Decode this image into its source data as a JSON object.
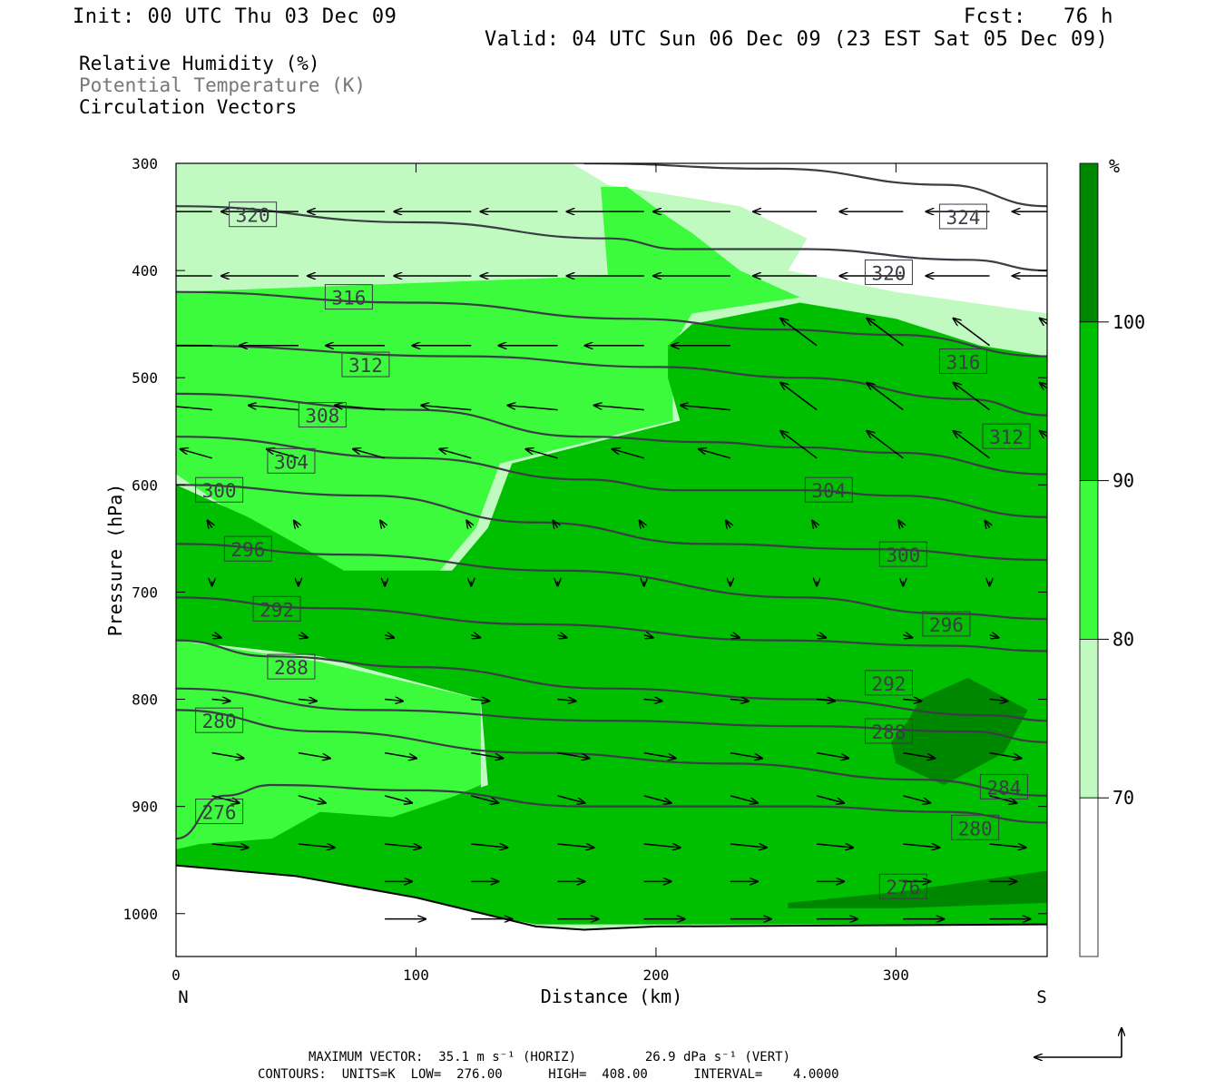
{
  "header": {
    "init": "Init: 00 UTC Thu 03 Dec 09",
    "fcst": "Fcst:   76 h",
    "valid": "Valid: 04 UTC Sun 06 Dec 09 (23 EST Sat 05 Dec 09)"
  },
  "legend_lines": [
    {
      "text": "Relative Humidity (%)",
      "color": "#000000"
    },
    {
      "text": "Potential Temperature (K)",
      "color": "#777777"
    },
    {
      "text": "Circulation Vectors",
      "color": "#000000"
    }
  ],
  "chart_data": {
    "type": "heatmap",
    "xlabel": "Distance (km)",
    "ylabel": "Pressure (hPa)",
    "x_range": [
      0,
      363
    ],
    "y_range": [
      300,
      1040
    ],
    "x_ticks": [
      0,
      100,
      200,
      300
    ],
    "y_ticks": [
      300,
      400,
      500,
      600,
      700,
      800,
      900,
      1000
    ],
    "x_end_labels": {
      "left": "N",
      "right": "S"
    },
    "colorbar": {
      "unit_label": "%",
      "levels": [
        70,
        80,
        90,
        100
      ],
      "colors": [
        "#ffffff",
        "#c0fac0",
        "#3cfa3c",
        "#00be00",
        "#008700"
      ]
    },
    "rh_fill": {
      "low_70_80": [
        [
          0,
          950
        ],
        [
          10,
          950
        ],
        [
          30,
          960
        ],
        [
          55,
          970
        ],
        [
          40,
          930
        ],
        [
          10,
          910
        ],
        [
          0,
          910
        ]
      ],
      "mid_80_90": [
        [
          0,
          420
        ],
        [
          100,
          410
        ],
        [
          180,
          405
        ],
        [
          220,
          400
        ],
        [
          250,
          400
        ],
        [
          260,
          430
        ],
        [
          220,
          440
        ],
        [
          210,
          465
        ],
        [
          207,
          540
        ],
        [
          135,
          580
        ],
        [
          125,
          640
        ],
        [
          110,
          680
        ],
        [
          80,
          690
        ],
        [
          40,
          650
        ],
        [
          10,
          600
        ],
        [
          0,
          590
        ],
        [
          0,
          740
        ],
        [
          60,
          760
        ],
        [
          130,
          810
        ],
        [
          127,
          880
        ],
        [
          127,
          910
        ],
        [
          100,
          920
        ],
        [
          60,
          930
        ],
        [
          30,
          880
        ],
        [
          0,
          870
        ]
      ],
      "high_90_100": [
        [
          205,
          470
        ],
        [
          215,
          450
        ],
        [
          260,
          430
        ],
        [
          300,
          445
        ],
        [
          335,
          470
        ],
        [
          363,
          480
        ],
        [
          363,
          1010
        ],
        [
          300,
          1010
        ],
        [
          200,
          1010
        ],
        [
          150,
          1010
        ],
        [
          100,
          990
        ],
        [
          55,
          970
        ],
        [
          0,
          955
        ],
        [
          0,
          940
        ],
        [
          10,
          935
        ],
        [
          40,
          930
        ],
        [
          60,
          905
        ],
        [
          90,
          910
        ],
        [
          130,
          880
        ],
        [
          127,
          800
        ],
        [
          60,
          760
        ],
        [
          0,
          745
        ],
        [
          0,
          600
        ],
        [
          30,
          630
        ],
        [
          70,
          680
        ],
        [
          115,
          680
        ],
        [
          130,
          640
        ],
        [
          140,
          580
        ],
        [
          210,
          540
        ],
        [
          205,
          500
        ]
      ],
      "max_gt_100": [
        [
          305,
          820
        ],
        [
          310,
          800
        ],
        [
          330,
          780
        ],
        [
          355,
          810
        ],
        [
          345,
          850
        ],
        [
          320,
          880
        ],
        [
          300,
          860
        ],
        [
          298,
          840
        ]
      ],
      "max_gt_100_b": [
        [
          255,
          990
        ],
        [
          300,
          980
        ],
        [
          363,
          960
        ],
        [
          363,
          990
        ],
        [
          300,
          995
        ],
        [
          255,
          995
        ]
      ]
    },
    "theta_isentropes": [
      {
        "level": 276,
        "points": [
          [
            0,
            930
          ],
          [
            20,
            890
          ],
          [
            40,
            880
          ],
          [
            100,
            885
          ],
          [
            170,
            900
          ],
          [
            260,
            900
          ],
          [
            320,
            905
          ],
          [
            363,
            915
          ]
        ]
      },
      {
        "level": 280,
        "points": [
          [
            0,
            810
          ],
          [
            60,
            830
          ],
          [
            150,
            850
          ],
          [
            230,
            860
          ],
          [
            310,
            875
          ],
          [
            363,
            890
          ]
        ]
      },
      {
        "level": 284,
        "points": [
          [
            0,
            790
          ],
          [
            80,
            810
          ],
          [
            180,
            820
          ],
          [
            260,
            825
          ],
          [
            330,
            830
          ],
          [
            363,
            840
          ]
        ]
      },
      {
        "level": 288,
        "points": [
          [
            0,
            745
          ],
          [
            40,
            760
          ],
          [
            100,
            770
          ],
          [
            180,
            790
          ],
          [
            260,
            800
          ],
          [
            340,
            815
          ],
          [
            363,
            820
          ]
        ]
      },
      {
        "level": 292,
        "points": [
          [
            0,
            705
          ],
          [
            60,
            715
          ],
          [
            150,
            730
          ],
          [
            250,
            745
          ],
          [
            320,
            750
          ],
          [
            363,
            755
          ]
        ]
      },
      {
        "level": 296,
        "points": [
          [
            0,
            655
          ],
          [
            70,
            665
          ],
          [
            160,
            680
          ],
          [
            260,
            705
          ],
          [
            320,
            720
          ],
          [
            363,
            725
          ]
        ]
      },
      {
        "level": 300,
        "points": [
          [
            0,
            600
          ],
          [
            80,
            610
          ],
          [
            150,
            635
          ],
          [
            220,
            655
          ],
          [
            290,
            660
          ],
          [
            363,
            670
          ]
        ]
      },
      {
        "level": 304,
        "points": [
          [
            0,
            555
          ],
          [
            100,
            575
          ],
          [
            170,
            595
          ],
          [
            210,
            605
          ],
          [
            260,
            605
          ],
          [
            300,
            610
          ],
          [
            363,
            630
          ]
        ]
      },
      {
        "level": 308,
        "points": [
          [
            0,
            515
          ],
          [
            100,
            530
          ],
          [
            170,
            555
          ],
          [
            220,
            560
          ],
          [
            260,
            565
          ],
          [
            300,
            570
          ],
          [
            363,
            590
          ]
        ]
      },
      {
        "level": 312,
        "points": [
          [
            0,
            470
          ],
          [
            120,
            480
          ],
          [
            200,
            490
          ],
          [
            260,
            500
          ],
          [
            330,
            520
          ],
          [
            363,
            535
          ]
        ]
      },
      {
        "level": 316,
        "points": [
          [
            0,
            420
          ],
          [
            100,
            430
          ],
          [
            190,
            445
          ],
          [
            250,
            455
          ],
          [
            300,
            460
          ],
          [
            363,
            480
          ]
        ]
      },
      {
        "level": 320,
        "points": [
          [
            0,
            340
          ],
          [
            100,
            355
          ],
          [
            180,
            370
          ],
          [
            210,
            380
          ],
          [
            260,
            380
          ],
          [
            330,
            390
          ],
          [
            363,
            400
          ]
        ]
      },
      {
        "level": 324,
        "points": [
          [
            170,
            300
          ],
          [
            250,
            305
          ],
          [
            320,
            320
          ],
          [
            363,
            340
          ]
        ]
      }
    ],
    "ground_line": [
      [
        0,
        955
      ],
      [
        50,
        965
      ],
      [
        100,
        985
      ],
      [
        150,
        1012
      ],
      [
        170,
        1015
      ],
      [
        200,
        1012
      ],
      [
        363,
        1010
      ]
    ],
    "contour_labels": [
      {
        "text": "320",
        "x": 32,
        "p": 348
      },
      {
        "text": "316",
        "x": 72,
        "p": 425
      },
      {
        "text": "312",
        "x": 79,
        "p": 488
      },
      {
        "text": "308",
        "x": 61,
        "p": 535
      },
      {
        "text": "304",
        "x": 48,
        "p": 578
      },
      {
        "text": "300",
        "x": 18,
        "p": 605
      },
      {
        "text": "296",
        "x": 30,
        "p": 660
      },
      {
        "text": "292",
        "x": 42,
        "p": 716
      },
      {
        "text": "288",
        "x": 48,
        "p": 770
      },
      {
        "text": "280",
        "x": 18,
        "p": 820
      },
      {
        "text": "276",
        "x": 18,
        "p": 905
      },
      {
        "text": "324",
        "x": 328,
        "p": 350
      },
      {
        "text": "320",
        "x": 297,
        "p": 402
      },
      {
        "text": "316",
        "x": 328,
        "p": 485
      },
      {
        "text": "312",
        "x": 346,
        "p": 555
      },
      {
        "text": "304",
        "x": 272,
        "p": 605
      },
      {
        "text": "300",
        "x": 303,
        "p": 665
      },
      {
        "text": "296",
        "x": 321,
        "p": 730
      },
      {
        "text": "292",
        "x": 297,
        "p": 785
      },
      {
        "text": "288",
        "x": 297,
        "p": 830
      },
      {
        "text": "284",
        "x": 345,
        "p": 882
      },
      {
        "text": "280",
        "x": 333,
        "p": 920
      },
      {
        "text": "276",
        "x": 303,
        "p": 975
      }
    ],
    "circulation_vectors": [
      {
        "x": 72,
        "p": 360,
        "u": -34,
        "w": 0.0
      },
      {
        "x": 145,
        "p": 365,
        "u": -30,
        "w": 0.05
      },
      {
        "x": 180,
        "p": 365,
        "u": -28,
        "w": 0.05
      },
      {
        "x": 255,
        "p": 372,
        "u": -28,
        "w": 0
      },
      {
        "x": 290,
        "p": 372,
        "u": -28,
        "w": 0
      },
      {
        "x": 363,
        "p": 372,
        "u": -34,
        "w": 0
      }
    ],
    "max_vector_note": "MAXIMUM VECTOR:  35.1 m s⁻¹ (HORIZ)         26.9 dPa s⁻¹ (VERT)",
    "contour_note": "CONTOURS:  UNITS=K  LOW=  276.00      HIGH=  408.00      INTERVAL=    4.0000"
  }
}
